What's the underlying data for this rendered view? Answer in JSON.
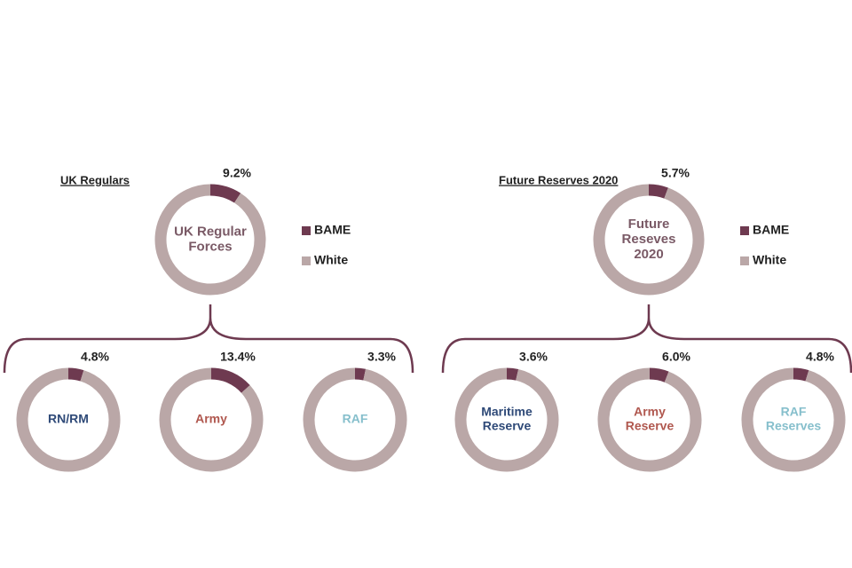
{
  "chart_data": [
    {
      "type": "donut-tree",
      "title": "UK Regulars",
      "series": [
        {
          "name": "BAME",
          "color": "#6e3a50"
        },
        {
          "name": "White",
          "color": "#baa7a7"
        }
      ],
      "root": {
        "label": [
          "UK Regular",
          "Forces"
        ],
        "label_color": "#7a5a66",
        "values": [
          9.2,
          90.8
        ],
        "value_labels": [
          "9.2%",
          null
        ]
      },
      "children": [
        {
          "label": [
            "RN/RM"
          ],
          "label_color": "#2f4a78",
          "values": [
            4.8,
            95.2
          ],
          "value_labels": [
            "4.8%",
            null
          ]
        },
        {
          "label": [
            "Army"
          ],
          "label_color": "#b0584f",
          "values": [
            13.4,
            86.6
          ],
          "value_labels": [
            "13.4%",
            null
          ]
        },
        {
          "label": [
            "RAF"
          ],
          "label_color": "#86bfcc",
          "values": [
            3.3,
            96.7
          ],
          "value_labels": [
            "3.3%",
            null
          ]
        }
      ]
    },
    {
      "type": "donut-tree",
      "title": "Future Reserves 2020",
      "series": [
        {
          "name": "BAME",
          "color": "#6e3a50"
        },
        {
          "name": "White",
          "color": "#baa7a7"
        }
      ],
      "root": {
        "label": [
          "Future",
          "Reseves",
          "2020"
        ],
        "label_color": "#7a5a66",
        "values": [
          5.7,
          94.3
        ],
        "value_labels": [
          "5.7%",
          null
        ]
      },
      "children": [
        {
          "label": [
            "Maritime",
            "Reserve"
          ],
          "label_color": "#2f4a78",
          "values": [
            3.6,
            96.4
          ],
          "value_labels": [
            "3.6%",
            null
          ]
        },
        {
          "label": [
            "Army",
            "Reserve"
          ],
          "label_color": "#b0584f",
          "values": [
            6.0,
            94.0
          ],
          "value_labels": [
            "6.0%",
            null
          ]
        },
        {
          "label": [
            "RAF",
            "Reserves"
          ],
          "label_color": "#86bfcc",
          "values": [
            4.8,
            95.2
          ],
          "value_labels": [
            "4.8%",
            null
          ]
        }
      ]
    }
  ]
}
